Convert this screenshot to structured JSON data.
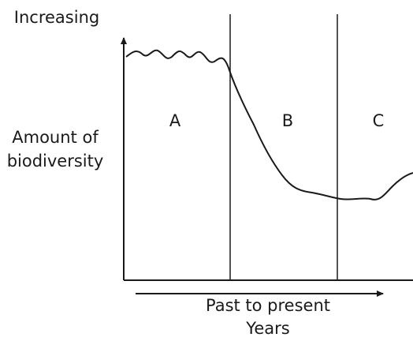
{
  "diagram": {
    "y_top": "Increasing",
    "y_axis": [
      "Amount of",
      "biodiversity"
    ],
    "regions": [
      "A",
      "B",
      "C"
    ],
    "x_axis": "Past to present",
    "x_unit": "Years"
  }
}
